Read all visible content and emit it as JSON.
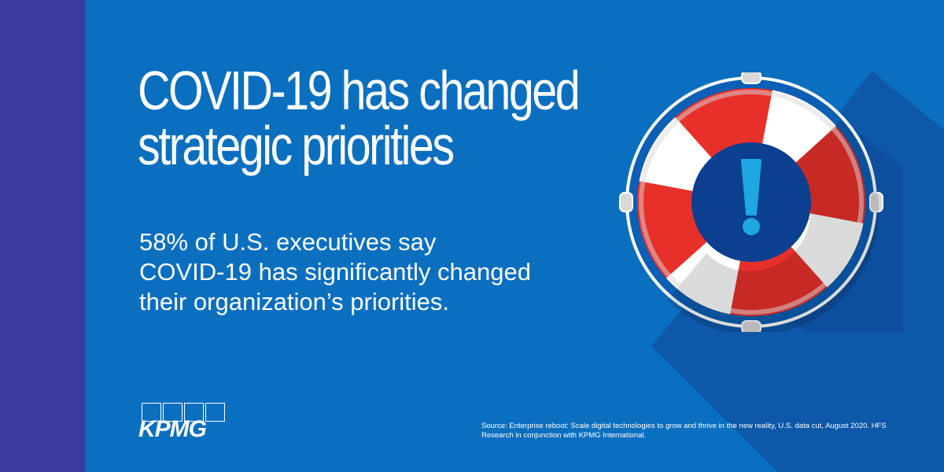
{
  "headline": {
    "line1": "COVID-19 has changed",
    "line2": "strategic priorities"
  },
  "body": {
    "line1": "58% of U.S. executives say",
    "line2": "COVID-19 has significantly changed",
    "line3": "their organization’s priorities."
  },
  "logo": {
    "text": "KPMG"
  },
  "source": {
    "text": "Source: Enterprise reboot: Scale digital technologies to grow and thrive in the new reality, U.S. data cut, August 2020. HFS Research in conjunction with KPMG International."
  },
  "illustration": {
    "icon": "lifebuoy-icon",
    "symbol": "exclamation-icon"
  },
  "colors": {
    "background": "#0b6fc0",
    "side_band": "#3b3aa0",
    "shadow": "#0d4f9e",
    "ring_red": "#e8302a",
    "ring_red_dark": "#b82420",
    "ring_white": "#ffffff",
    "ring_grey": "#d9d9d9",
    "center_navy": "#0b3f8f",
    "accent_light_blue": "#1ea7e1"
  }
}
